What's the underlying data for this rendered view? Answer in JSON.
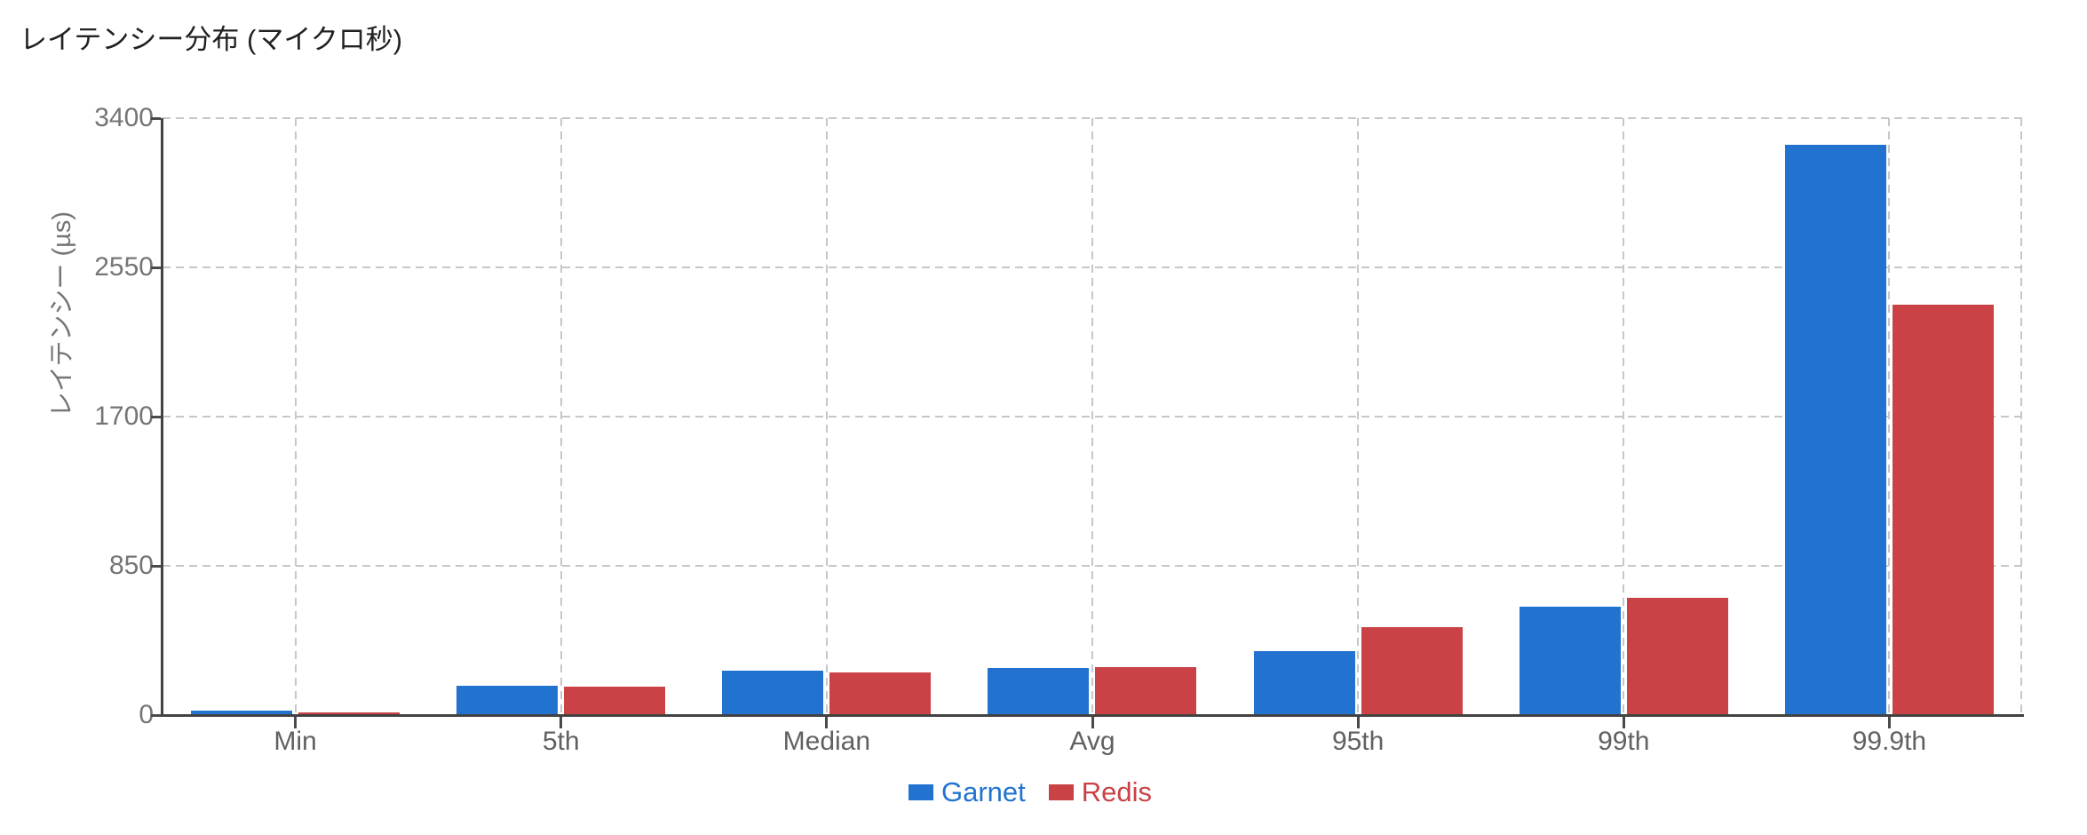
{
  "chart_data": {
    "type": "bar",
    "title": "レイテンシー分布 (マイクロ秒)",
    "ylabel": "レイテンシー (µs)",
    "xlabel": "",
    "categories": [
      "Min",
      "5th",
      "Median",
      "Avg",
      "95th",
      "99th",
      "99.9th"
    ],
    "series": [
      {
        "name": "Garnet",
        "color": "#2273D0",
        "values": [
          25,
          165,
          255,
          270,
          365,
          620,
          3250
        ]
      },
      {
        "name": "Redis",
        "color": "#CA4245",
        "values": [
          15,
          160,
          245,
          275,
          500,
          670,
          2340
        ]
      }
    ],
    "ylim": [
      0,
      3400
    ],
    "y_ticks": [
      0,
      850,
      1700,
      2550,
      3400
    ],
    "y_tick_labels": [
      "0",
      "850",
      "1700",
      "2550",
      "3400"
    ],
    "grid": "dashed horizontal gridlines at each y tick and dashed vertical gridlines at each category center and right edge",
    "legend_position": "bottom-center"
  },
  "colors": {
    "garnet_blue": "#2273D0",
    "redis_red": "#CA4245",
    "axis": "#424242",
    "gridline": "#c7c7c7",
    "tick_label": "#757575",
    "category_label": "#616161",
    "title_text": "#212121",
    "background": "#ffffff"
  }
}
